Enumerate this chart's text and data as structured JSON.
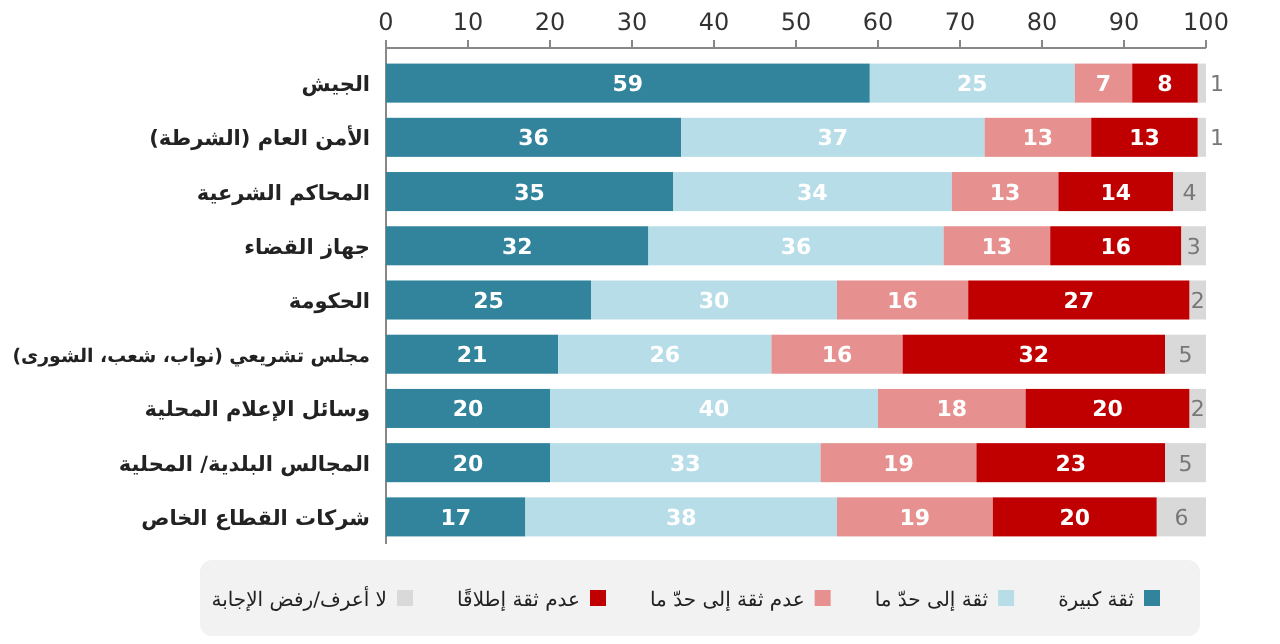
{
  "chart_data": {
    "type": "bar",
    "orientation": "horizontal",
    "stacked": true,
    "data_labels": true,
    "legend": "bottom",
    "grid": false,
    "categories": [
      "الجيش",
      "الأمن العام (الشرطة)",
      "المحاكم الشرعية",
      "جهاز القضاء",
      "الحكومة",
      "مجلس تشريعي (نواب، شعب، الشورى)",
      "وسائل الإعلام  المحلية",
      "المجالس البلدية/ المحلية",
      "شركات القطاع الخاص"
    ],
    "xlim": [
      0,
      100
    ],
    "xticks": [
      0,
      10,
      20,
      30,
      40,
      50,
      60,
      70,
      80,
      90,
      100
    ],
    "series": [
      {
        "name": "ثقة كبيرة",
        "color": "#31849b",
        "values": [
          59,
          36,
          35,
          32,
          25,
          21,
          20,
          20,
          17
        ]
      },
      {
        "name": "ثقة إلى حدّ ما",
        "color": "#b7dde8",
        "values": [
          25,
          37,
          34,
          36,
          30,
          26,
          40,
          33,
          38
        ]
      },
      {
        "name": "عدم ثقة إلى حدّ ما",
        "color": "#e6918f",
        "values": [
          7,
          13,
          13,
          13,
          16,
          16,
          18,
          19,
          19
        ]
      },
      {
        "name": "عدم ثقة إطلاقًا",
        "color": "#c00000",
        "values": [
          8,
          13,
          14,
          16,
          27,
          32,
          20,
          23,
          20
        ]
      },
      {
        "name": "لا أعرف/رفض الإجابة",
        "color": "#d9d9d9",
        "values": [
          1,
          1,
          4,
          3,
          2,
          5,
          2,
          5,
          6
        ]
      }
    ]
  }
}
